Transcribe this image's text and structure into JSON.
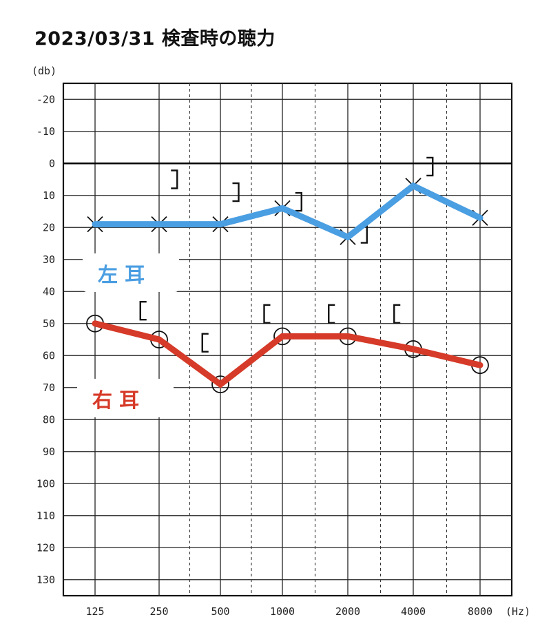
{
  "chart_data": {
    "type": "line",
    "title": "2023/03/31 検査時の聴力",
    "y_unit": "(db)",
    "x_unit": "(Hz)",
    "categories": [
      "125",
      "250",
      "500",
      "1000",
      "2000",
      "4000",
      "8000"
    ],
    "y_ticks": [
      "-20",
      "-10",
      "0",
      "10",
      "20",
      "30",
      "40",
      "50",
      "60",
      "70",
      "80",
      "90",
      "100",
      "110",
      "120",
      "130"
    ],
    "ylim": [
      -25,
      135
    ],
    "y_inverted": true,
    "series": [
      {
        "name": "左 耳",
        "color": "#4a9ee2",
        "marker": "x",
        "values": [
          19,
          19,
          19,
          14,
          23,
          7,
          17
        ]
      },
      {
        "name": "右 耳",
        "color": "#d63a28",
        "marker": "o",
        "values": [
          50,
          55,
          69,
          54,
          54,
          58,
          63
        ]
      }
    ],
    "bone_conduction": {
      "left": {
        "symbol": "]",
        "points": [
          [
            1.25,
            5
          ],
          [
            2.25,
            9
          ],
          [
            3.25,
            12
          ],
          [
            4.25,
            22
          ],
          [
            5.25,
            1
          ]
        ]
      },
      "right": {
        "symbol": "[",
        "points": [
          [
            0.75,
            46
          ],
          [
            1.75,
            56
          ],
          [
            2.75,
            47
          ],
          [
            3.75,
            47
          ],
          [
            4.75,
            47
          ]
        ]
      }
    },
    "reference_line_db": 0,
    "grid": true
  }
}
